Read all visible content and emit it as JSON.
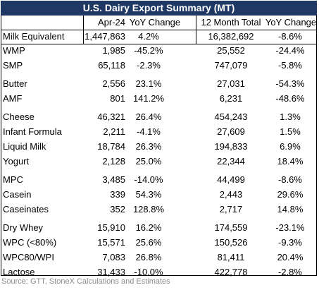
{
  "title": "U.S. Dairy Export Summary (MT)",
  "columns": [
    "Apr-24",
    "YoY Change",
    "12 Month Total",
    "YoY Change"
  ],
  "headline": [
    "Milk Equivalent",
    "1,447,863",
    "4.2%",
    "16,382,692",
    "-8.6%"
  ],
  "groups": [
    [
      [
        "WMP",
        "1,985",
        "-45.2%",
        "25,552",
        "-24.4%"
      ],
      [
        "SMP",
        "65,118",
        "-2.3%",
        "747,079",
        "-5.8%"
      ]
    ],
    [
      [
        "Butter",
        "2,556",
        "23.1%",
        "27,031",
        "-54.3%"
      ],
      [
        "AMF",
        "801",
        "141.2%",
        "6,231",
        "-48.6%"
      ]
    ],
    [
      [
        "Cheese",
        "46,321",
        "26.4%",
        "454,243",
        "1.3%"
      ],
      [
        "Infant Formula",
        "2,211",
        "-4.1%",
        "27,609",
        "1.5%"
      ],
      [
        "Liquid Milk",
        "18,784",
        "26.3%",
        "194,833",
        "6.9%"
      ],
      [
        "Yogurt",
        "2,128",
        "25.0%",
        "22,344",
        "18.4%"
      ]
    ],
    [
      [
        "MPC",
        "3,485",
        "-14.0%",
        "44,499",
        "-8.6%"
      ],
      [
        "Casein",
        "339",
        "54.3%",
        "2,443",
        "29.6%"
      ],
      [
        "Caseinates",
        "352",
        "128.8%",
        "2,717",
        "14.8%"
      ]
    ],
    [
      [
        "Dry Whey",
        "15,910",
        "16.2%",
        "174,559",
        "-23.1%"
      ],
      [
        "WPC (<80%)",
        "15,571",
        "25.6%",
        "150,526",
        "-9.3%"
      ],
      [
        "WPC80/WPI",
        "7,083",
        "26.8%",
        "81,411",
        "20.4%"
      ],
      [
        "Lactose",
        "31,433",
        "-10.0%",
        "422,778",
        "-2.8%"
      ]
    ]
  ],
  "source": "Source: GTT, StoneX Calculations and Estimates"
}
